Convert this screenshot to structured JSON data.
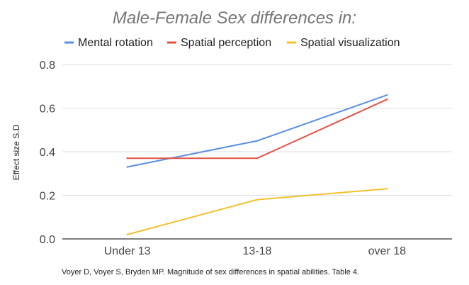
{
  "chart_data": {
    "type": "line",
    "title": "Male-Female Sex differences in:",
    "xlabel": "",
    "ylabel": "Effect size S.D",
    "categories": [
      "Under 13",
      "13-18",
      "over 18"
    ],
    "ylim": [
      0,
      0.8
    ],
    "yticks": [
      "0.0",
      "0.2",
      "0.4",
      "0.6",
      "0.8"
    ],
    "grid": true,
    "legend_position": "top",
    "series": [
      {
        "name": "Mental rotation",
        "color": "#5b8fe0",
        "values": [
          0.33,
          0.45,
          0.66
        ]
      },
      {
        "name": "Spatial perception",
        "color": "#e05247",
        "values": [
          0.37,
          0.37,
          0.64
        ]
      },
      {
        "name": "Spatial visualization",
        "color": "#f2c12e",
        "values": [
          0.02,
          0.18,
          0.23
        ]
      }
    ]
  },
  "footnote": "Voyer D, Voyer S, Bryden MP. Magnitude of sex differences in spatial abilities. Table 4."
}
